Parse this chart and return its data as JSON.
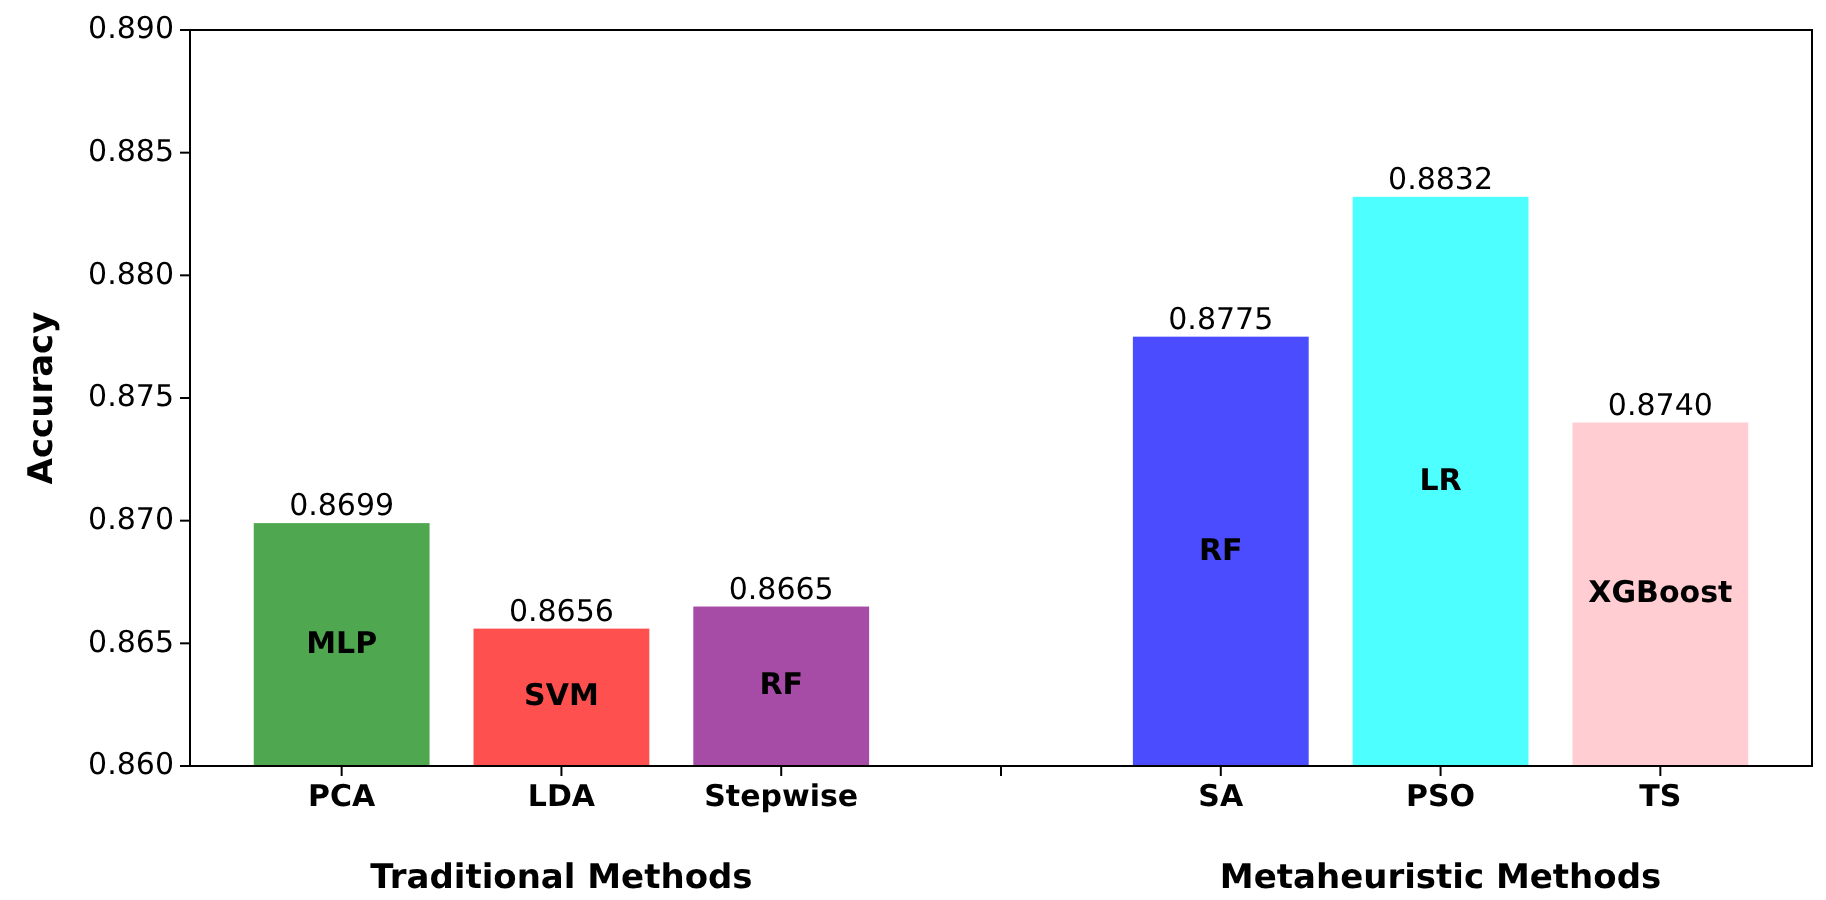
{
  "chart_data": {
    "type": "bar",
    "ylabel": "Accuracy",
    "categories": [
      "PCA",
      "LDA",
      "Stepwise",
      null,
      "SA",
      "PSO",
      "TS"
    ],
    "values": [
      0.8699,
      0.8656,
      0.8665,
      null,
      0.8775,
      0.8832,
      0.874
    ],
    "colors": [
      "#4fa74f",
      "#ff5050",
      "#a64ca6",
      null,
      "#4c4cff",
      "#4dffff",
      "#ffcdd2"
    ],
    "value_labels": [
      "0.8699",
      "0.8656",
      "0.8665",
      null,
      "0.8775",
      "0.8832",
      "0.8740"
    ],
    "data_labels": true,
    "ylim": [
      0.86,
      0.89
    ],
    "yticks": [
      {
        "value": 0.86,
        "label": "0.860"
      },
      {
        "value": 0.865,
        "label": "0.865"
      },
      {
        "value": 0.87,
        "label": "0.870"
      },
      {
        "value": 0.875,
        "label": "0.875"
      },
      {
        "value": 0.88,
        "label": "0.880"
      },
      {
        "value": 0.885,
        "label": "0.885"
      },
      {
        "value": 0.89,
        "label": "0.890"
      }
    ],
    "grid": false,
    "annotations": [
      "MLP",
      "SVM",
      "RF",
      "RF",
      "LR",
      "XGBoost",
      "Traditional Methods",
      "Metaheuristic Methods"
    ]
  }
}
